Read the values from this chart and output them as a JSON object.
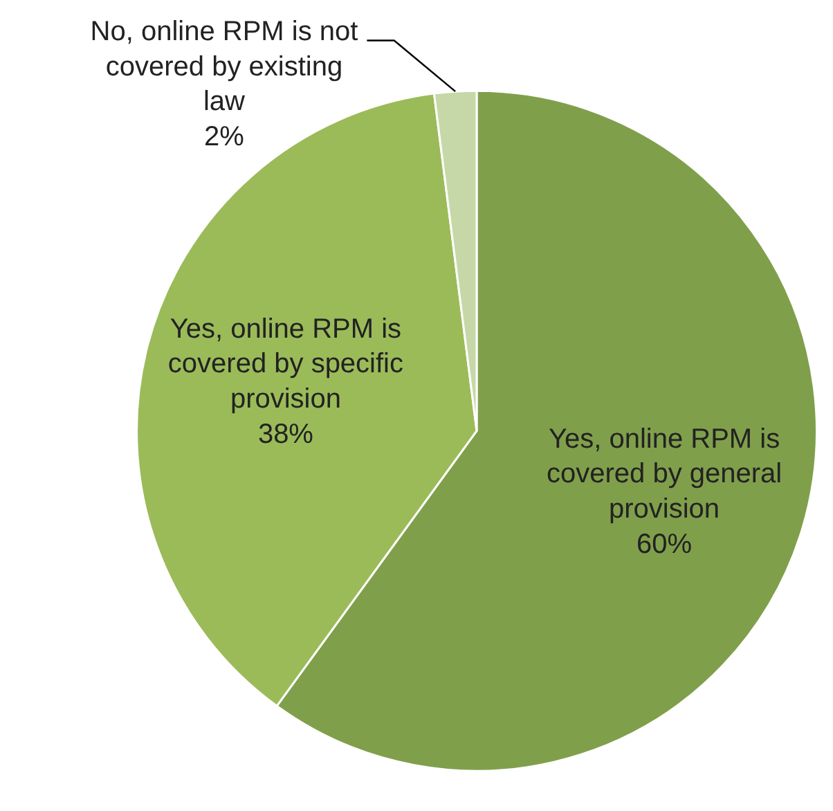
{
  "chart_data": {
    "type": "pie",
    "categories": [
      "Yes, online RPM is covered by general provision",
      "Yes, online RPM is covered by specific provision",
      "No, online RPM is not covered by existing law"
    ],
    "values": [
      60,
      38,
      2
    ],
    "colors": [
      "#809f4b",
      "#9bbb59",
      "#c6d8a7"
    ],
    "value_labels": [
      "60%",
      "38%",
      "2%"
    ]
  }
}
